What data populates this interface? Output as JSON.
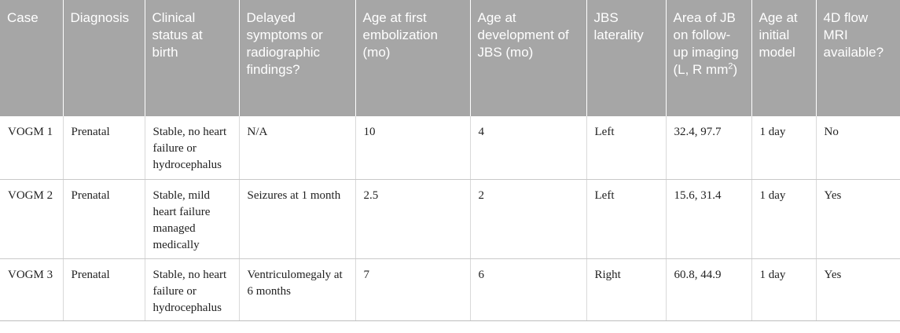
{
  "table": {
    "headers": [
      "Case",
      "Diagnosis",
      "Clinical status at birth",
      "Delayed symptoms or radiographic findings?",
      "Age at first embolization (mo)",
      "Age at development of JBS (mo)",
      "JBS laterality",
      "Area of JB on follow-up imaging (L, R mm",
      "Age at initial model",
      "4D flow MRI available?"
    ],
    "area_header_superscript": "2",
    "area_header_suffix": ")",
    "rows": [
      [
        "VOGM 1",
        "Prenatal",
        "Stable, no heart failure or hydrocephalus",
        "N/A",
        "10",
        "4",
        "Left",
        "32.4, 97.7",
        "1 day",
        "No"
      ],
      [
        "VOGM 2",
        "Prenatal",
        "Stable, mild heart failure managed medically",
        "Seizures at 1 month",
        "2.5",
        "2",
        "Left",
        "15.6, 31.4",
        "1 day",
        "Yes"
      ],
      [
        "VOGM 3",
        "Prenatal",
        "Stable, no heart failure or hydrocephalus",
        "Ventriculomegaly at 6 months",
        "7",
        "6",
        "Right",
        "60.8, 44.9",
        "1 day",
        "Yes"
      ]
    ]
  }
}
